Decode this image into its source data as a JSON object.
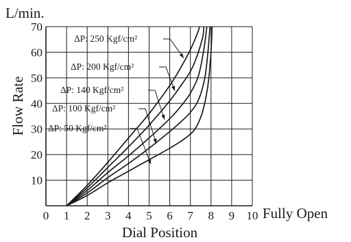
{
  "chart_data": {
    "type": "line",
    "ylabel_unit": "L/min.",
    "ylabel": "Flow Rate",
    "xlabel": "Dial Position",
    "x_end_label": "Fully Open",
    "xlim": [
      0,
      10
    ],
    "ylim": [
      0,
      70
    ],
    "x_ticks": [
      "0",
      "1",
      "2",
      "3",
      "4",
      "5",
      "6",
      "7",
      "8",
      "9",
      "10"
    ],
    "y_ticks": [
      "10",
      "20",
      "30",
      "40",
      "50",
      "60",
      "70"
    ],
    "grid": true,
    "series": [
      {
        "name": "ΔP: 250 Kgf/cm²",
        "x": [
          1.0,
          2,
          3,
          4,
          5,
          6,
          6.5,
          7.0,
          7.3,
          7.45
        ],
        "y": [
          0,
          8,
          17,
          26.5,
          36,
          47,
          53.5,
          61,
          66.5,
          70
        ]
      },
      {
        "name": "ΔP: 200 Kgf/cm²",
        "x": [
          1.0,
          2,
          3,
          4,
          5,
          6,
          6.5,
          7.0,
          7.3,
          7.6,
          7.65
        ],
        "y": [
          0,
          7,
          15,
          23,
          31.5,
          41,
          46.5,
          52.5,
          58,
          66,
          70
        ]
      },
      {
        "name": "ΔP: 140 Kgf/cm²",
        "x": [
          1.0,
          2,
          3,
          4,
          5,
          6,
          6.5,
          7.0,
          7.4,
          7.65,
          7.8
        ],
        "y": [
          0,
          6,
          13,
          19.5,
          26.5,
          34,
          38.5,
          44,
          51,
          61,
          70
        ]
      },
      {
        "name": "ΔP: 100 Kgf/cm²",
        "x": [
          1.0,
          2,
          3,
          4,
          5,
          6,
          6.5,
          7.0,
          7.4,
          7.7,
          7.85,
          7.95
        ],
        "y": [
          0,
          5,
          11,
          16.5,
          22.5,
          29,
          32.5,
          36.5,
          41.5,
          50,
          60,
          70
        ]
      },
      {
        "name": "ΔP: 50 Kgf/cm²",
        "x": [
          1.0,
          2,
          3,
          4,
          5,
          6,
          6.5,
          7.0,
          7.3,
          7.6,
          7.85,
          8.0,
          8.05
        ],
        "y": [
          0,
          4,
          9,
          13.5,
          18,
          22.5,
          25,
          28,
          31,
          37,
          47,
          60,
          70
        ]
      }
    ],
    "annotations": [
      {
        "text": "ΔP: 250 Kgf/cm²",
        "series": 0
      },
      {
        "text": "ΔP: 200 Kgf/cm²",
        "series": 1
      },
      {
        "text": "ΔP: 140 Kgf/cm²",
        "series": 2
      },
      {
        "text": "ΔP: 100 Kgf/cm²",
        "series": 3
      },
      {
        "text": "ΔP: 50 Kgf/cm²",
        "series": 4
      }
    ]
  }
}
